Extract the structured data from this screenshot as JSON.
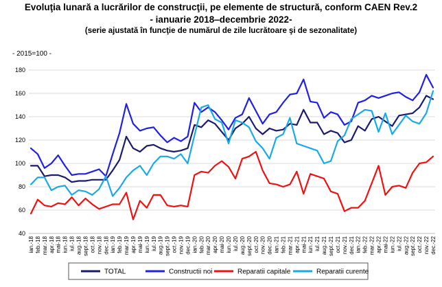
{
  "chart_data": {
    "type": "line",
    "title": "Evoluţia lunară a lucrărilor de construcţii, pe elemente de structură, conform CAEN Rev.2",
    "title_period": "- ianuarie 2018‒decembrie 2022-",
    "subtitle": "(serie ajustată în funcţie de numărul de zile lucrătoare şi de sezonalitate)",
    "base_note": "- 2015=100 -",
    "ylim": [
      40,
      180
    ],
    "yticks": [
      40,
      60,
      80,
      100,
      120,
      140,
      160,
      180
    ],
    "grid": "horizontal",
    "legend_position": "bottom",
    "categories": [
      "ian.-18",
      "feb.-18",
      "mar.-18",
      "apr.-18",
      "mai-18",
      "iun.-18",
      "iul.-18",
      "aug.-18",
      "sept.-18",
      "oct.-18",
      "nov.-18",
      "dec.-18",
      "ian.-19",
      "feb.-19",
      "mar.-19",
      "apr.-19",
      "mai-19",
      "iun.-19",
      "iul.-19",
      "aug.-19",
      "sept.-19",
      "oct.-19",
      "nov.-19",
      "dec.-19",
      "ian.-20",
      "feb.-20",
      "mar.-20",
      "apr.-20",
      "mai-20",
      "iun.-20",
      "iul.-20",
      "aug.-20",
      "sept.-20",
      "oct.-20",
      "nov.-20",
      "dec.-20",
      "ian.-21",
      "feb.-21",
      "mar.-21",
      "apr.-21",
      "mai-21",
      "iun.-21",
      "iul.-21",
      "aug.-21",
      "sept.-21",
      "oct.-21",
      "nov.-21",
      "dec.-21",
      "ian.-22",
      "feb.-22",
      "mar.-22",
      "apr.-22",
      "mai-22",
      "iun.-22",
      "iul.-22",
      "aug.-22",
      "sept.-22",
      "oct.-22",
      "nov.-22",
      "dec.-22"
    ],
    "series": [
      {
        "name": "TOTAL",
        "color": "#1a1a6e",
        "values": [
          98,
          98,
          89,
          90,
          90,
          88,
          84,
          85,
          85,
          86,
          86,
          86,
          94,
          103,
          123,
          113,
          110,
          115,
          116,
          113,
          111,
          110,
          111,
          113,
          133,
          131,
          137,
          134,
          127,
          120,
          130,
          134,
          140,
          130,
          125,
          130,
          128,
          129,
          134,
          133,
          146,
          135,
          135,
          125,
          128,
          126,
          118,
          120,
          132,
          128,
          138,
          140,
          136,
          132,
          141,
          142,
          143,
          148,
          158,
          155
        ]
      },
      {
        "name": "Constructii noi",
        "color": "#1f1fe6",
        "values": [
          113,
          108,
          96,
          100,
          107,
          98,
          90,
          91,
          91,
          93,
          95,
          89,
          108,
          126,
          151,
          134,
          128,
          130,
          131,
          124,
          118,
          122,
          119,
          123,
          152,
          144,
          148,
          144,
          137,
          129,
          139,
          142,
          156,
          145,
          134,
          142,
          144,
          152,
          159,
          160,
          172,
          153,
          152,
          139,
          144,
          142,
          133,
          136,
          152,
          154,
          158,
          156,
          158,
          160,
          161,
          157,
          154,
          161,
          176,
          165
        ]
      },
      {
        "name": "Reparatii capitale",
        "color": "#ee1111",
        "values": [
          57,
          69,
          64,
          63,
          66,
          65,
          71,
          64,
          70,
          65,
          61,
          63,
          65,
          65,
          75,
          52,
          68,
          62,
          73,
          73,
          64,
          63,
          64,
          63,
          90,
          93,
          92,
          98,
          102,
          97,
          87,
          104,
          106,
          110,
          94,
          83,
          82,
          80,
          82,
          93,
          74,
          91,
          89,
          87,
          76,
          74,
          59,
          62,
          62,
          68,
          83,
          98,
          73,
          80,
          81,
          79,
          92,
          100,
          101,
          106
        ]
      },
      {
        "name": "Reparatii curente",
        "color": "#18aae6",
        "values": [
          82,
          88,
          88,
          77,
          80,
          81,
          73,
          77,
          76,
          73,
          78,
          89,
          72,
          79,
          88,
          94,
          98,
          90,
          100,
          106,
          106,
          104,
          108,
          100,
          124,
          148,
          150,
          138,
          135,
          117,
          137,
          135,
          131,
          119,
          113,
          104,
          122,
          125,
          139,
          117,
          115,
          113,
          111,
          100,
          102,
          119,
          124,
          138,
          142,
          146,
          145,
          127,
          143,
          125,
          133,
          141,
          136,
          134,
          143,
          162
        ]
      }
    ]
  }
}
